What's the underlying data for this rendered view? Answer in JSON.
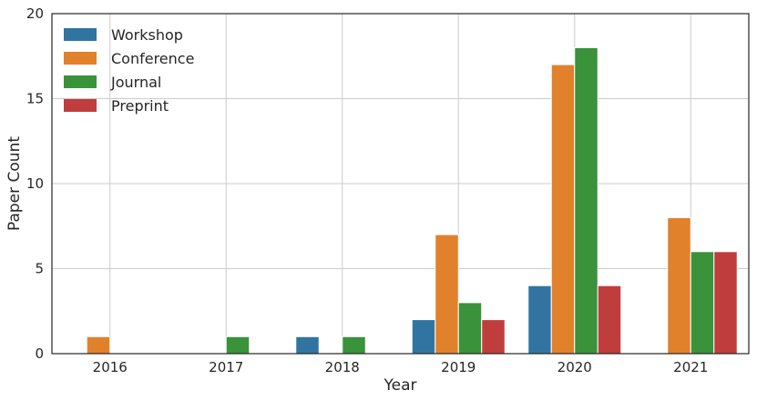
{
  "chart_data": {
    "type": "bar",
    "title": "",
    "xlabel": "Year",
    "ylabel": "Paper Count",
    "categories": [
      "2016",
      "2017",
      "2018",
      "2019",
      "2020",
      "2021"
    ],
    "ylim": [
      0,
      20
    ],
    "yticks": [
      "0",
      "5",
      "10",
      "15",
      "20"
    ],
    "grid": true,
    "legend_position": "top-left",
    "series": [
      {
        "name": "Workshop",
        "color": "#3274a1",
        "values": [
          0,
          0,
          1,
          2,
          4,
          0
        ]
      },
      {
        "name": "Conference",
        "color": "#e1812c",
        "values": [
          1,
          0,
          0,
          7,
          17,
          8
        ]
      },
      {
        "name": "Journal",
        "color": "#3a923a",
        "values": [
          0,
          1,
          1,
          3,
          18,
          6
        ]
      },
      {
        "name": "Preprint",
        "color": "#c03d3e",
        "values": [
          0,
          0,
          0,
          2,
          4,
          6
        ]
      }
    ]
  }
}
